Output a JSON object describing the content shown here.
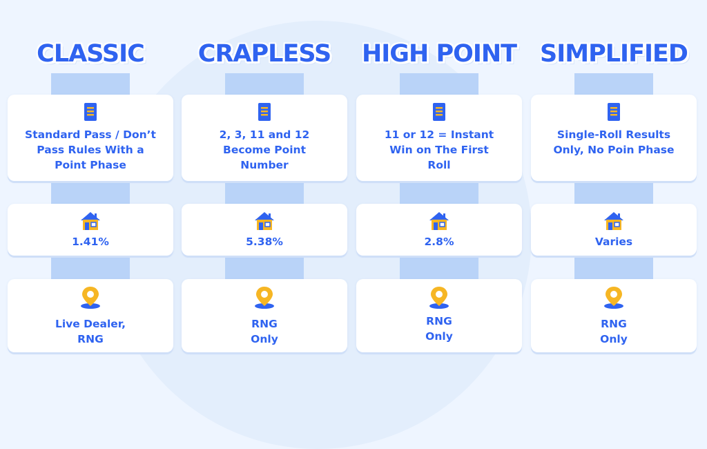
{
  "columns": [
    {
      "title": "CLASSIC",
      "rules": "Standard Pass / Don’t Pass Rules With a Point Phase",
      "house_edge": "1.41%",
      "availability": "Live Dealer, RNG"
    },
    {
      "title": "CRAPLESS",
      "rules": "2, 3, 11 and 12 Become Point Number",
      "house_edge": "5.38%",
      "availability": "RNG Only"
    },
    {
      "title": "HIGH POINT",
      "rules": "11 or 12 = Instant Win on The First Roll",
      "house_edge": "2.8%",
      "availability": "RNG Only"
    },
    {
      "title": "SIMPLIFIED",
      "rules": "Single-Roll Results Only, No Poin Phase",
      "house_edge": "Varies",
      "availability": "RNG Only"
    }
  ],
  "icons": {
    "rules": "document-icon",
    "house_edge": "house-icon",
    "availability": "location-pin-icon"
  },
  "colors": {
    "accent": "#2f63f0",
    "connector": "#b9d3f8",
    "background": "#eef5ff",
    "icon_yellow": "#f6b624",
    "icon_blue": "#2f63f0"
  }
}
